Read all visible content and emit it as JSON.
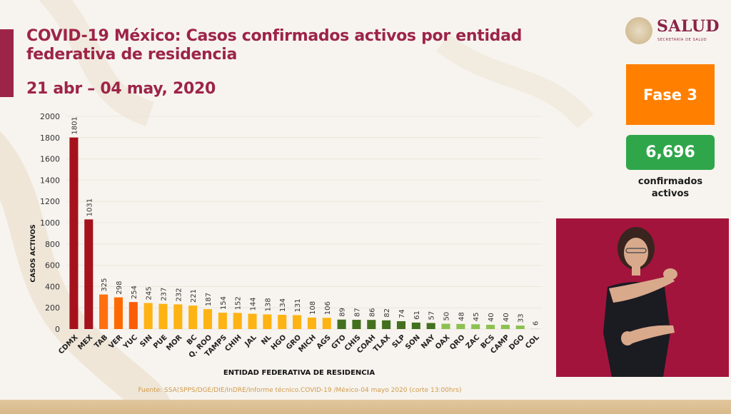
{
  "header": {
    "title": "COVID-19 México: Casos confirmados activos por entidad federativa de residencia",
    "date_range": "21 abr – 04 may, 2020"
  },
  "logo": {
    "name": "SALUD",
    "subtitle": "SECRETARÍA DE SALUD"
  },
  "sidebar": {
    "phase_label": "Fase 3",
    "active_count": "6,696",
    "active_label": "confirmados activos"
  },
  "colors": {
    "brand": "#9d2449",
    "phase": "#ff8000",
    "count": "#2fa64a"
  },
  "source_note": "Fuente: SSA(SPPS/DGE/DIE/InDRE/Informe técnico.COVID-19 /México-04 mayo 2020 (corte 13:00hrs)",
  "chart_data": {
    "type": "bar",
    "title": "COVID-19 México: Casos confirmados activos por entidad federativa de residencia",
    "xlabel": "ENTIDAD FEDERATIVA DE  RESIDENCIA",
    "ylabel": "CASOS ACTIVOS",
    "ylim": [
      0,
      2000
    ],
    "yticks": [
      0,
      200,
      400,
      600,
      800,
      1000,
      1200,
      1400,
      1600,
      1800,
      2000
    ],
    "grid": true,
    "categories": [
      "CDMX",
      "MEX",
      "TAB",
      "VER",
      "YUC",
      "SIN",
      "PUE",
      "MOR",
      "BC",
      "Q. ROO",
      "TAMPS",
      "CHIH",
      "JAL",
      "NL",
      "HGO",
      "GRO",
      "MICH",
      "AGS",
      "GTO",
      "CHIS",
      "COAH",
      "TLAX",
      "SLP",
      "SON",
      "NAY",
      "OAX",
      "QRO",
      "ZAC",
      "BCS",
      "CAMP",
      "DGO",
      "COL"
    ],
    "values": [
      1801,
      1031,
      325,
      298,
      254,
      245,
      237,
      232,
      221,
      187,
      154,
      152,
      144,
      138,
      134,
      131,
      108,
      106,
      89,
      87,
      86,
      82,
      74,
      61,
      57,
      50,
      48,
      45,
      40,
      40,
      33,
      6
    ],
    "bar_colors": [
      "#a5121c",
      "#a5121c",
      "#ff6f0f",
      "#ff6a00",
      "#fb5c08",
      "#fdb313",
      "#fdb313",
      "#fdb313",
      "#fdb313",
      "#fdb313",
      "#fdb313",
      "#fdb313",
      "#fdb313",
      "#fdb313",
      "#fdb313",
      "#fdb313",
      "#fdb313",
      "#fdb313",
      "#43701f",
      "#43701f",
      "#43701f",
      "#43701f",
      "#43701f",
      "#43701f",
      "#43701f",
      "#8cc152",
      "#8cc152",
      "#8cc152",
      "#8cc152",
      "#8cc152",
      "#8cc152",
      "#d9d9d9"
    ]
  }
}
